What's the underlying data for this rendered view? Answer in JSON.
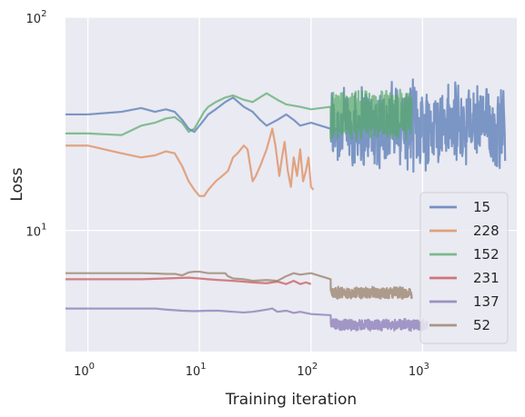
{
  "chart_data": {
    "type": "line",
    "title": "",
    "xlabel": "Training iteration",
    "ylabel": "Loss",
    "xscale": "log",
    "yscale": "log",
    "xlim": [
      0.63,
      7000
    ],
    "ylim": [
      2.7,
      100
    ],
    "x_ticks": [
      {
        "value": 1,
        "base": "10",
        "exp": "0"
      },
      {
        "value": 10,
        "base": "10",
        "exp": "1"
      },
      {
        "value": 100,
        "base": "10",
        "exp": "2"
      },
      {
        "value": 1000,
        "base": "10",
        "exp": "3"
      }
    ],
    "y_ticks": [
      {
        "value": 10,
        "base": "10",
        "exp": "1"
      },
      {
        "value": 100,
        "base": "10",
        "exp": "2"
      }
    ],
    "grid": true,
    "legend_position": "lower-right",
    "series": [
      {
        "name": "15",
        "color": "#4c72b0",
        "x_max": 5500,
        "points": [
          [
            0.63,
            35
          ],
          [
            1,
            35
          ],
          [
            2,
            36
          ],
          [
            3,
            37.5
          ],
          [
            4,
            36
          ],
          [
            5,
            37
          ],
          [
            6,
            36
          ],
          [
            7,
            33
          ],
          [
            8,
            30
          ],
          [
            9,
            29
          ],
          [
            10,
            31
          ],
          [
            11,
            33
          ],
          [
            12,
            35
          ],
          [
            14,
            37
          ],
          [
            17,
            40
          ],
          [
            20,
            42
          ],
          [
            25,
            38
          ],
          [
            30,
            36
          ],
          [
            35,
            33
          ],
          [
            40,
            31
          ],
          [
            50,
            33
          ],
          [
            60,
            35
          ],
          [
            70,
            33
          ],
          [
            80,
            31
          ],
          [
            100,
            32
          ],
          [
            150,
            30
          ]
        ],
        "noise_to": 5500,
        "noise_center": 31,
        "noise_amp": 0.45
      },
      {
        "name": "228",
        "color": "#dd8452",
        "x_max": 105,
        "points": [
          [
            0.63,
            25
          ],
          [
            1,
            25
          ],
          [
            2,
            23
          ],
          [
            3,
            22
          ],
          [
            4,
            22.5
          ],
          [
            5,
            23.5
          ],
          [
            6,
            23
          ],
          [
            7,
            20
          ],
          [
            8,
            17
          ],
          [
            9,
            15.5
          ],
          [
            10,
            14.5
          ],
          [
            11,
            14.5
          ],
          [
            12,
            15.5
          ],
          [
            14,
            17
          ],
          [
            16,
            18
          ],
          [
            18,
            19
          ],
          [
            20,
            22
          ],
          [
            22,
            23
          ],
          [
            25,
            25
          ],
          [
            27,
            24
          ],
          [
            30,
            17
          ],
          [
            32,
            18
          ],
          [
            35,
            20
          ],
          [
            40,
            24
          ],
          [
            45,
            30
          ],
          [
            48,
            25
          ],
          [
            52,
            18
          ],
          [
            55,
            22
          ],
          [
            58,
            26
          ],
          [
            62,
            19
          ],
          [
            66,
            16
          ],
          [
            70,
            22
          ],
          [
            75,
            18
          ],
          [
            80,
            24
          ],
          [
            85,
            17
          ],
          [
            90,
            19
          ],
          [
            95,
            22
          ],
          [
            100,
            16
          ],
          [
            105,
            15.5
          ]
        ]
      },
      {
        "name": "152",
        "color": "#55a868",
        "x_max": 800,
        "points": [
          [
            0.63,
            28.5
          ],
          [
            1,
            28.5
          ],
          [
            2,
            28
          ],
          [
            3,
            31
          ],
          [
            4,
            32
          ],
          [
            5,
            33.5
          ],
          [
            6,
            34
          ],
          [
            7,
            32
          ],
          [
            8,
            29
          ],
          [
            9,
            30
          ],
          [
            10,
            33
          ],
          [
            11,
            36
          ],
          [
            12,
            38
          ],
          [
            14,
            40
          ],
          [
            17,
            42
          ],
          [
            20,
            43
          ],
          [
            25,
            41
          ],
          [
            30,
            40
          ],
          [
            40,
            44
          ],
          [
            50,
            41
          ],
          [
            60,
            39
          ],
          [
            80,
            38
          ],
          [
            100,
            37
          ],
          [
            150,
            38
          ]
        ],
        "noise_to": 800,
        "noise_center": 35,
        "noise_amp": 0.25
      },
      {
        "name": "231",
        "color": "#c44e52",
        "x_max": 100,
        "points": [
          [
            0.63,
            5.9
          ],
          [
            1,
            5.9
          ],
          [
            2,
            5.9
          ],
          [
            3,
            5.9
          ],
          [
            5,
            5.95
          ],
          [
            8,
            6.0
          ],
          [
            10,
            5.95
          ],
          [
            12,
            5.9
          ],
          [
            15,
            5.85
          ],
          [
            20,
            5.8
          ],
          [
            25,
            5.75
          ],
          [
            30,
            5.7
          ],
          [
            40,
            5.65
          ],
          [
            50,
            5.75
          ],
          [
            60,
            5.6
          ],
          [
            70,
            5.8
          ],
          [
            80,
            5.6
          ],
          [
            90,
            5.7
          ],
          [
            100,
            5.6
          ]
        ]
      },
      {
        "name": "137",
        "color": "#8172b2",
        "x_max": 1100,
        "points": [
          [
            0.63,
            4.3
          ],
          [
            1,
            4.3
          ],
          [
            2,
            4.3
          ],
          [
            3,
            4.3
          ],
          [
            4,
            4.3
          ],
          [
            5,
            4.25
          ],
          [
            7,
            4.2
          ],
          [
            9,
            4.18
          ],
          [
            12,
            4.2
          ],
          [
            15,
            4.2
          ],
          [
            20,
            4.15
          ],
          [
            25,
            4.12
          ],
          [
            30,
            4.15
          ],
          [
            40,
            4.25
          ],
          [
            45,
            4.3
          ],
          [
            50,
            4.15
          ],
          [
            60,
            4.2
          ],
          [
            70,
            4.1
          ],
          [
            80,
            4.15
          ],
          [
            100,
            4.05
          ],
          [
            150,
            4.0
          ]
        ],
        "noise_to": 1100,
        "noise_center": 3.6,
        "noise_amp": 0.06
      },
      {
        "name": "52",
        "color": "#937860",
        "x_max": 800,
        "points": [
          [
            0.63,
            6.3
          ],
          [
            1,
            6.3
          ],
          [
            2,
            6.3
          ],
          [
            3,
            6.3
          ],
          [
            4,
            6.28
          ],
          [
            5,
            6.25
          ],
          [
            6,
            6.25
          ],
          [
            7,
            6.15
          ],
          [
            8,
            6.35
          ],
          [
            9,
            6.4
          ],
          [
            10,
            6.4
          ],
          [
            12,
            6.3
          ],
          [
            14,
            6.3
          ],
          [
            17,
            6.3
          ],
          [
            18,
            6.1
          ],
          [
            20,
            5.95
          ],
          [
            25,
            5.9
          ],
          [
            30,
            5.8
          ],
          [
            40,
            5.85
          ],
          [
            50,
            5.8
          ],
          [
            60,
            6.1
          ],
          [
            70,
            6.3
          ],
          [
            80,
            6.2
          ],
          [
            100,
            6.3
          ],
          [
            150,
            5.9
          ]
        ],
        "noise_to": 800,
        "noise_center": 5.1,
        "noise_amp": 0.06
      }
    ]
  }
}
